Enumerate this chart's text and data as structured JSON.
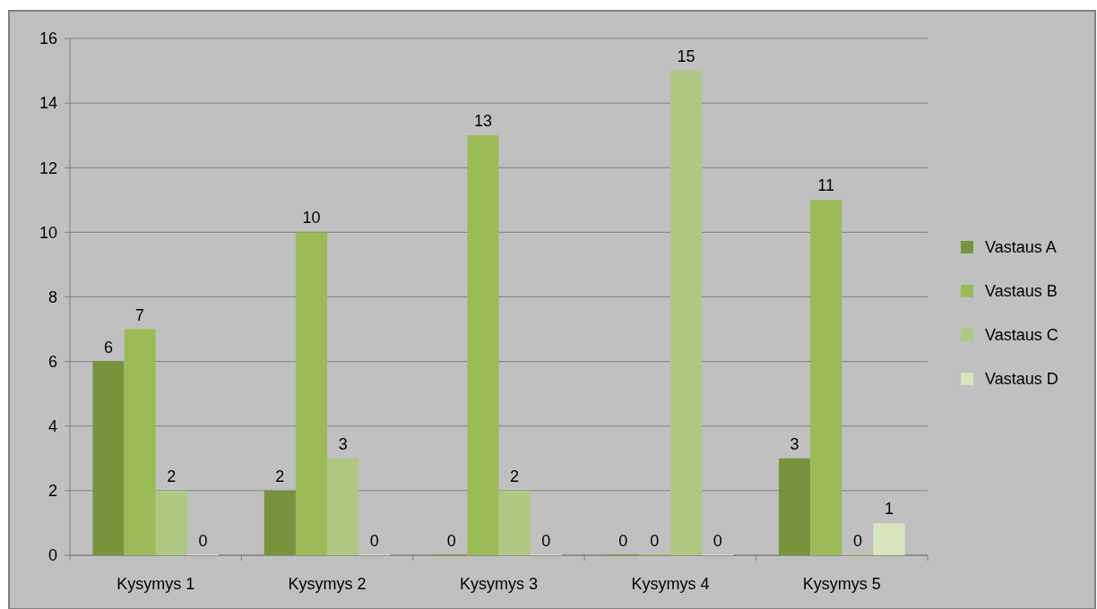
{
  "chart_data": {
    "type": "bar",
    "categories": [
      "Kysymys 1",
      "Kysymys 2",
      "Kysymys 3",
      "Kysymys 4",
      "Kysymys 5"
    ],
    "series": [
      {
        "name": "Vastaus A",
        "color": "#77933c",
        "values": [
          6,
          2,
          0,
          0,
          3
        ]
      },
      {
        "name": "Vastaus B",
        "color": "#9bbb59",
        "values": [
          7,
          10,
          13,
          0,
          11
        ]
      },
      {
        "name": "Vastaus C",
        "color": "#afc985",
        "values": [
          2,
          3,
          2,
          15,
          0
        ]
      },
      {
        "name": "Vastaus D",
        "color": "#d7e4bd",
        "values": [
          0,
          0,
          0,
          0,
          1
        ]
      }
    ],
    "ylim": [
      0,
      16
    ],
    "yticks": [
      0,
      2,
      4,
      6,
      8,
      10,
      12,
      14,
      16
    ],
    "grid": "y",
    "legend": "right",
    "data_labels": true
  }
}
